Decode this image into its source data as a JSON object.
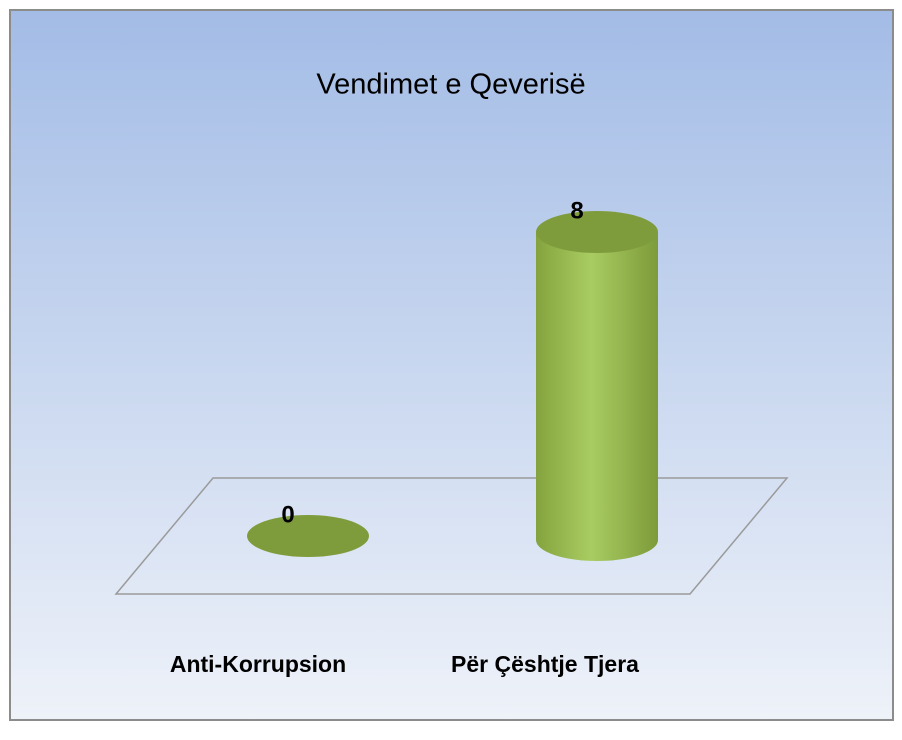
{
  "chart_data": {
    "type": "cylinder",
    "title": "Vendimet e Qeverisë",
    "categories": [
      "Anti-Korrupsion",
      "Për Çështje Tjera"
    ],
    "values": [
      0,
      8
    ],
    "color": "#9bbb59"
  }
}
